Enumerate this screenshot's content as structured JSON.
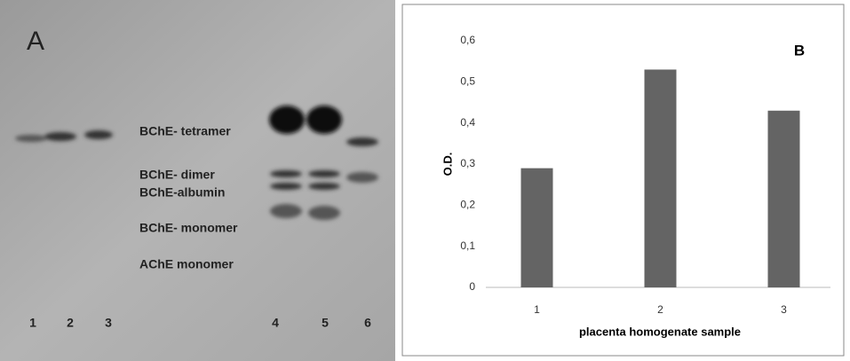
{
  "gel": {
    "panel_label": "A",
    "band_labels": [
      "BChE- tetramer",
      "BChE- dimer",
      "BChE-albumin",
      "BChE- monomer",
      "AChE monomer"
    ],
    "lanes": [
      "1",
      "2",
      "3",
      "4",
      "5",
      "6"
    ]
  },
  "chart_data": {
    "type": "bar",
    "annotation": "B",
    "categories": [
      "1",
      "2",
      "3"
    ],
    "values": [
      0.29,
      0.53,
      0.43
    ],
    "color": "#646464",
    "ylim": [
      0,
      0.6
    ],
    "yticks": [
      0,
      {
        "value": 0.1,
        "label": "0,1"
      },
      {
        "value": 0.2,
        "label": "0,2"
      },
      {
        "value": 0.3,
        "label": "0,3"
      },
      {
        "value": 0.4,
        "label": "0,4"
      },
      {
        "value": 0.5,
        "label": "0,5"
      },
      {
        "value": 0.6,
        "label": "0,6"
      }
    ],
    "y_label": "O.D.",
    "x_label": "placenta homogenate sample",
    "grid": false
  }
}
